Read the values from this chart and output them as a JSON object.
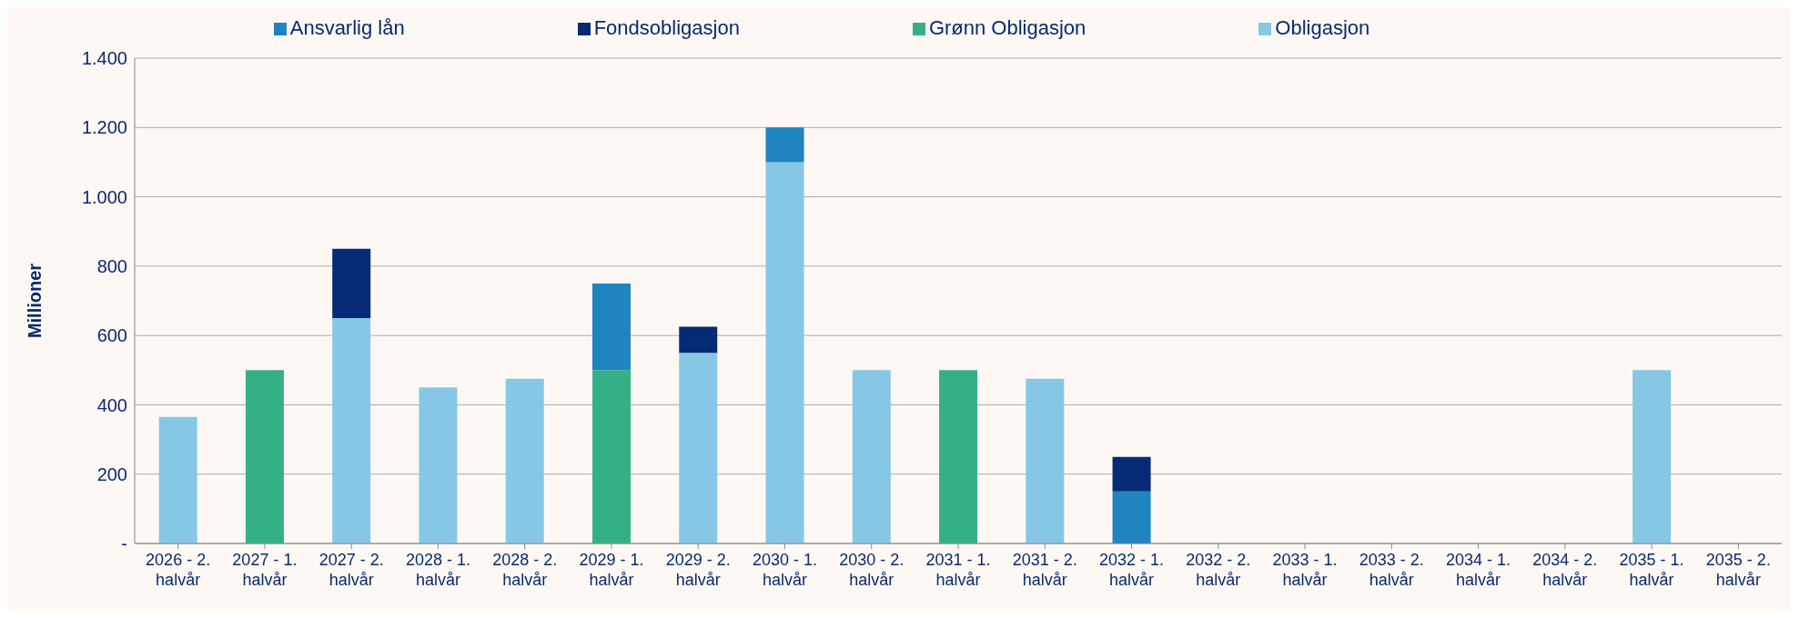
{
  "chart_data": {
    "type": "bar",
    "stacked": true,
    "ylabel": "Millioner",
    "categories": [
      "2026 - 2. halvår",
      "2027 - 1. halvår",
      "2027 - 2. halvår",
      "2028 - 1. halvår",
      "2028 - 2. halvår",
      "2029 - 1. halvår",
      "2029 - 2. halvår",
      "2030 - 1. halvår",
      "2030 - 2. halvår",
      "2031 - 1. halvår",
      "2031 - 2. halvår",
      "2032 - 1. halvår",
      "2032 - 2. halvår",
      "2033 - 1. halvår",
      "2033 - 2. halvår",
      "2034 - 1. halvår",
      "2034 - 2. halvår",
      "2035 - 1. halvår",
      "2035 - 2. halvår"
    ],
    "series": [
      {
        "name": "Obligasjon",
        "color": "#87c7e6",
        "values": [
          365,
          null,
          650,
          450,
          475,
          null,
          550,
          1100,
          500,
          null,
          475,
          null,
          null,
          null,
          null,
          null,
          null,
          500,
          null
        ]
      },
      {
        "name": "Grønn Obligasjon",
        "color": "#34b087",
        "values": [
          null,
          500,
          null,
          null,
          null,
          500,
          null,
          null,
          null,
          500,
          null,
          null,
          null,
          null,
          null,
          null,
          null,
          null,
          null
        ]
      },
      {
        "name": "Ansvarlig lån",
        "color": "#1f84bf",
        "values": [
          null,
          null,
          null,
          null,
          null,
          250,
          null,
          100,
          null,
          null,
          null,
          150,
          null,
          null,
          null,
          null,
          null,
          null,
          null
        ]
      },
      {
        "name": "Fondsobligasjon",
        "color": "#062b74",
        "values": [
          null,
          null,
          200,
          null,
          null,
          null,
          75,
          null,
          null,
          null,
          null,
          100,
          null,
          null,
          null,
          null,
          null,
          null,
          null
        ]
      }
    ],
    "ylim": [
      0,
      1400
    ],
    "yticks": [
      {
        "value": 0,
        "label": "-"
      },
      200,
      400,
      600,
      800,
      {
        "value": 1000,
        "label": "1.000"
      },
      {
        "value": 1200,
        "label": "1.200"
      },
      {
        "value": 1400,
        "label": "1.400"
      }
    ],
    "grid": "y",
    "legend": "top"
  }
}
